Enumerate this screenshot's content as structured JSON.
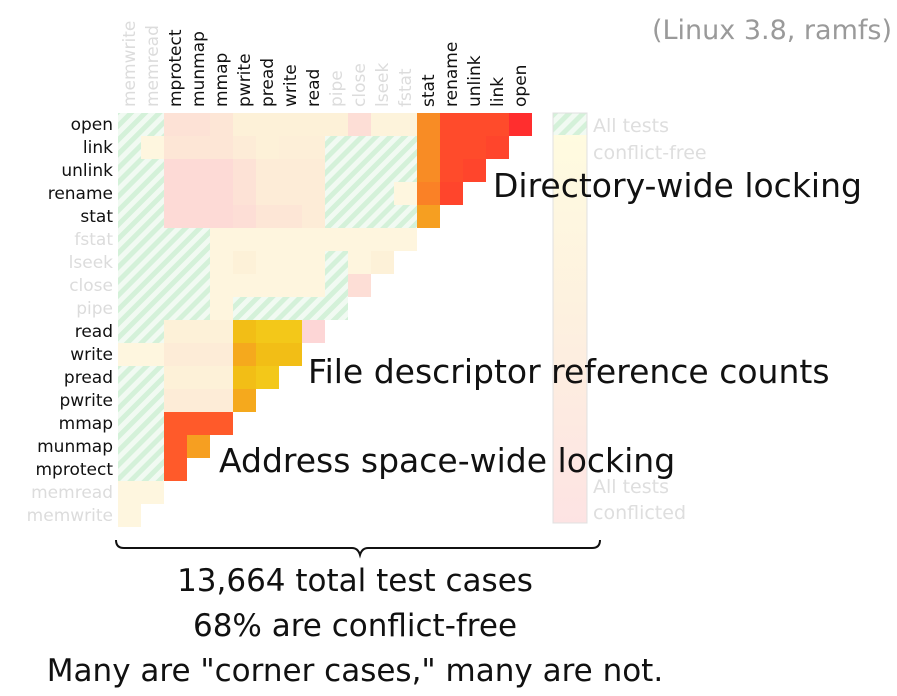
{
  "chart_data": {
    "type": "heatmap",
    "title": "",
    "info_label": "(Linux 3.8, ramfs)",
    "row_labels": [
      "open",
      "link",
      "unlink",
      "rename",
      "stat",
      "fstat",
      "lseek",
      "close",
      "pipe",
      "read",
      "write",
      "pread",
      "pwrite",
      "mmap",
      "munmap",
      "mprotect",
      "memread",
      "memwrite"
    ],
    "column_labels": [
      "memwrite",
      "memread",
      "mprotect",
      "munmap",
      "mmap",
      "pwrite",
      "pread",
      "write",
      "read",
      "pipe",
      "close",
      "lseek",
      "fstat",
      "stat",
      "rename",
      "unlink",
      "link",
      "open"
    ],
    "dim_labels": [
      "fstat",
      "lseek",
      "close",
      "pipe",
      "memread",
      "memwrite"
    ],
    "scale": "0 = all tests conflict-free, 1 = all tests conflicted, -1 = all conflict-free (hatched)",
    "values": [
      [
        -1,
        -1,
        0.25,
        0.25,
        0.2,
        0.1,
        0.1,
        0.1,
        0.1,
        0.1,
        0.3,
        0.08,
        0.08,
        0.72,
        0.9,
        0.9,
        0.9,
        1.0
      ],
      [
        -1,
        0.05,
        0.2,
        0.2,
        0.2,
        0.15,
        0.1,
        0.12,
        0.12,
        -1,
        -1,
        -1,
        -1,
        0.72,
        0.9,
        0.9,
        0.92
      ],
      [
        -1,
        -1,
        0.35,
        0.35,
        0.35,
        0.25,
        0.15,
        0.15,
        0.15,
        -1,
        -1,
        -1,
        -1,
        0.72,
        0.9,
        0.92
      ],
      [
        -1,
        -1,
        0.35,
        0.35,
        0.35,
        0.25,
        0.15,
        0.15,
        0.15,
        -1,
        -1,
        -1,
        0.05,
        0.75,
        0.92
      ],
      [
        -1,
        -1,
        0.35,
        0.35,
        0.35,
        0.3,
        0.2,
        0.2,
        0.15,
        -1,
        -1,
        -1,
        -1,
        0.65
      ],
      [
        -1,
        -1,
        -1,
        -1,
        0.06,
        0.06,
        0.06,
        0.06,
        0.06,
        0.06,
        0.06,
        0.06,
        0.06
      ],
      [
        -1,
        -1,
        -1,
        -1,
        0.06,
        0.1,
        0.06,
        0.06,
        0.06,
        -1,
        0.06,
        0.1
      ],
      [
        -1,
        -1,
        -1,
        -1,
        0.06,
        0.06,
        0.06,
        0.06,
        0.06,
        -1,
        0.3
      ],
      [
        -1,
        -1,
        -1,
        -1,
        0.06,
        -1,
        -1,
        -1,
        -1,
        -1
      ],
      [
        -1,
        -1,
        0.1,
        0.1,
        0.1,
        0.5,
        0.45,
        0.45,
        0.4
      ],
      [
        0.05,
        0.05,
        0.15,
        0.15,
        0.15,
        0.6,
        0.5,
        0.5
      ],
      [
        -1,
        -1,
        0.1,
        0.1,
        0.1,
        0.5,
        0.45
      ],
      [
        -1,
        -1,
        0.15,
        0.15,
        0.15,
        0.6
      ],
      [
        -1,
        -1,
        0.85,
        0.85,
        0.85
      ],
      [
        -1,
        -1,
        0.85,
        0.65
      ],
      [
        -1,
        -1,
        0.85
      ],
      [
        0.05,
        0.05
      ],
      [
        0.05
      ]
    ],
    "legend": {
      "top_label": [
        "All tests",
        "conflict-free"
      ],
      "bottom_label": [
        "All tests",
        "conflicted"
      ]
    },
    "annotations": [
      "Directory-wide locking",
      "File descriptor reference counts",
      "Address space-wide locking"
    ],
    "summary": [
      "13,664 total test cases",
      "68% are conflict-free",
      "Many are \"corner cases,\" many are not."
    ]
  },
  "colors": {
    "conflict_free_stripe": "#d8f3dc",
    "hatched_base": "#f2fbf3",
    "low": "#fff8d8",
    "mid": "#f2c81a",
    "high": "#ff3030",
    "pink": "#fdd8d8",
    "label_dim": "#dcdcdc"
  }
}
